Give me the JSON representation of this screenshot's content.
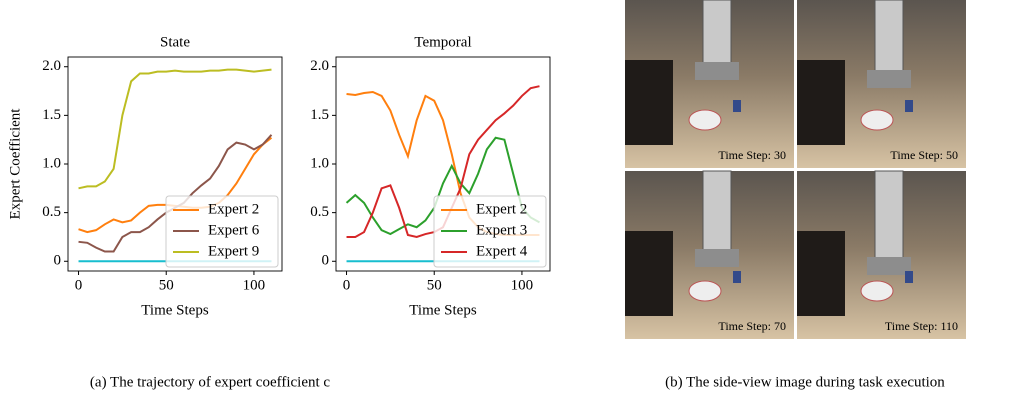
{
  "chart_data": [
    {
      "type": "line",
      "title": "State",
      "x_label": "Time Steps",
      "y_label": "Expert Coefficient",
      "x": [
        0,
        5,
        10,
        15,
        20,
        25,
        30,
        35,
        40,
        45,
        50,
        55,
        60,
        65,
        70,
        75,
        80,
        85,
        90,
        95,
        100,
        105,
        110
      ],
      "xlim": [
        -6,
        116
      ],
      "ylim": [
        -0.1,
        2.1
      ],
      "xticks": [
        0,
        50,
        100
      ],
      "yticks": [
        0,
        0.5,
        {
          "value": 1,
          "label": "1.0"
        },
        1.5,
        {
          "value": 2,
          "label": "2.0"
        }
      ],
      "legend": "lower right",
      "series": [
        {
          "color": "#17becf",
          "values": [
            0,
            0,
            0,
            0,
            0,
            0,
            0,
            0,
            0,
            0,
            0,
            0,
            0,
            0,
            0,
            0,
            0,
            0,
            0,
            0,
            0,
            0,
            0
          ]
        },
        {
          "name": "Expert 2",
          "color": "#ff7f0e",
          "values": [
            0.33,
            0.3,
            0.32,
            0.38,
            0.43,
            0.4,
            0.42,
            0.5,
            0.57,
            0.58,
            0.58,
            0.57,
            0.56,
            0.55,
            0.55,
            0.56,
            0.6,
            0.68,
            0.8,
            0.95,
            1.1,
            1.2,
            1.27
          ]
        },
        {
          "name": "Expert 6",
          "color": "#8c564b",
          "values": [
            0.2,
            0.19,
            0.14,
            0.1,
            0.1,
            0.25,
            0.3,
            0.3,
            0.35,
            0.43,
            0.5,
            0.55,
            0.6,
            0.7,
            0.78,
            0.85,
            0.98,
            1.15,
            1.22,
            1.2,
            1.15,
            1.2,
            1.3
          ]
        },
        {
          "name": "Expert 9",
          "color": "#bcbd22",
          "values": [
            0.75,
            0.77,
            0.77,
            0.82,
            0.95,
            1.5,
            1.85,
            1.93,
            1.93,
            1.95,
            1.95,
            1.96,
            1.95,
            1.95,
            1.95,
            1.96,
            1.96,
            1.97,
            1.97,
            1.96,
            1.95,
            1.96,
            1.97
          ]
        }
      ]
    },
    {
      "type": "line",
      "title": "Temporal",
      "x_label": "Time Steps",
      "x": [
        0,
        5,
        10,
        15,
        20,
        25,
        30,
        35,
        40,
        45,
        50,
        55,
        60,
        65,
        70,
        75,
        80,
        85,
        90,
        95,
        100,
        105,
        110
      ],
      "xlim": [
        -6,
        116
      ],
      "ylim": [
        -0.1,
        2.1
      ],
      "xticks": [
        0,
        50,
        100
      ],
      "yticks": [
        0,
        0.5,
        {
          "value": 1,
          "label": "1.0"
        },
        1.5,
        {
          "value": 2,
          "label": "2.0"
        }
      ],
      "legend": "lower right",
      "series": [
        {
          "color": "#17becf",
          "values": [
            0,
            0,
            0,
            0,
            0,
            0,
            0,
            0,
            0,
            0,
            0,
            0,
            0,
            0,
            0,
            0,
            0,
            0,
            0,
            0,
            0,
            0,
            0
          ]
        },
        {
          "name": "Expert 2",
          "color": "#ff7f0e",
          "values": [
            1.72,
            1.71,
            1.73,
            1.74,
            1.7,
            1.55,
            1.3,
            1.08,
            1.45,
            1.7,
            1.65,
            1.45,
            1.1,
            0.7,
            0.45,
            0.35,
            0.3,
            0.28,
            0.27,
            0.27,
            0.27,
            0.27,
            0.27
          ]
        },
        {
          "name": "Expert 3",
          "color": "#2ca02c",
          "values": [
            0.6,
            0.68,
            0.6,
            0.45,
            0.32,
            0.28,
            0.33,
            0.38,
            0.35,
            0.42,
            0.55,
            0.8,
            0.98,
            0.8,
            0.7,
            0.9,
            1.15,
            1.27,
            1.25,
            0.9,
            0.55,
            0.45,
            0.4
          ]
        },
        {
          "name": "Expert 4",
          "color": "#d62728",
          "values": [
            0.25,
            0.25,
            0.3,
            0.5,
            0.75,
            0.78,
            0.55,
            0.27,
            0.25,
            0.28,
            0.3,
            0.35,
            0.55,
            0.75,
            1.1,
            1.25,
            1.35,
            1.45,
            1.52,
            1.6,
            1.7,
            1.78,
            1.8
          ]
        }
      ]
    }
  ],
  "images": [
    "Time Step: 30",
    "Time Step: 50",
    "Time Step: 70",
    "Time Step: 110"
  ],
  "captions": [
    "(a) The trajectory of expert coefficient c",
    "(b) The side-view image during task execution"
  ]
}
